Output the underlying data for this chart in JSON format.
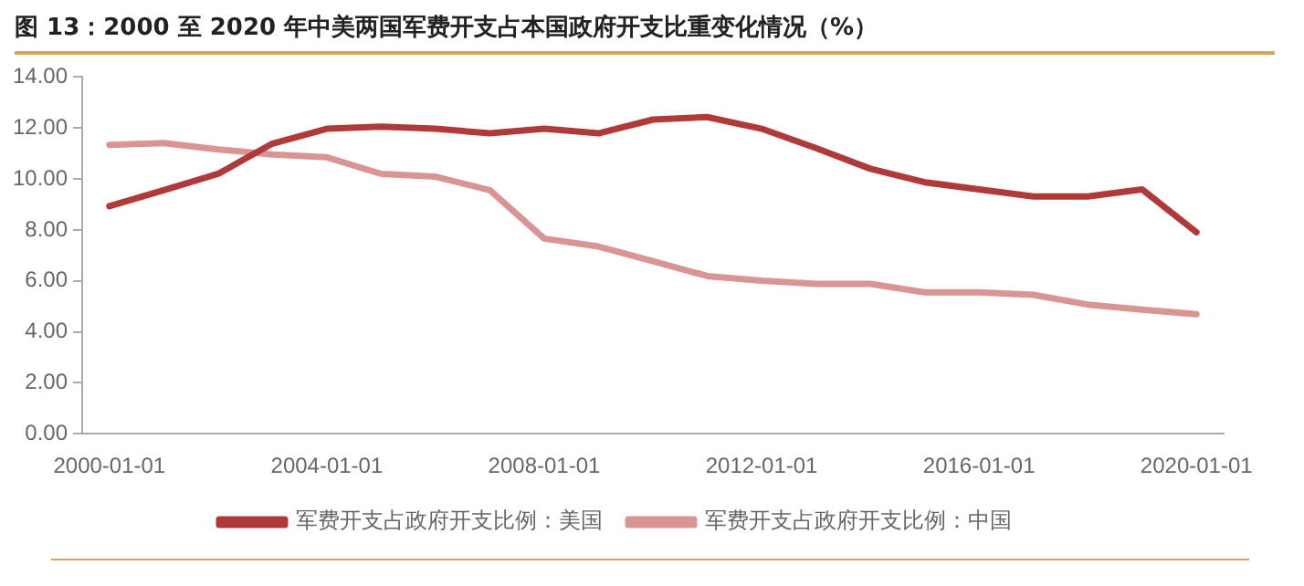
{
  "chart_data": {
    "type": "line",
    "title": "图 13：2000 至 2020 年中美两国军费开支占本国政府开支比重变化情况（%）",
    "categories": [
      "2000-01-01",
      null,
      null,
      null,
      "2004-01-01",
      null,
      null,
      null,
      "2008-01-01",
      null,
      null,
      null,
      "2012-01-01",
      null,
      null,
      null,
      "2016-01-01",
      null,
      null,
      null,
      "2020-01-01"
    ],
    "series": [
      {
        "name": "军费开支占政府开支比例：美国",
        "color": "#b03a3a",
        "values": [
          8.93,
          9.56,
          10.2,
          11.39,
          11.97,
          12.05,
          11.97,
          11.79,
          11.97,
          11.79,
          12.33,
          12.43,
          11.97,
          11.21,
          10.4,
          9.87,
          9.59,
          9.31,
          9.31,
          9.59,
          7.91
        ]
      },
      {
        "name": "军费开支占政府开支比例：中国",
        "color": "#d99594",
        "values": [
          11.34,
          11.41,
          11.16,
          10.96,
          10.85,
          10.2,
          10.09,
          9.56,
          7.66,
          7.35,
          6.77,
          6.19,
          6.01,
          5.88,
          5.88,
          5.55,
          5.55,
          5.45,
          5.07,
          4.87,
          4.69
        ]
      }
    ],
    "ylim": [
      0,
      14
    ],
    "yticks": [
      {
        "value": 0,
        "label": "0.00"
      },
      {
        "value": 2,
        "label": "2.00"
      },
      {
        "value": 4,
        "label": "4.00"
      },
      {
        "value": 6,
        "label": "6.00"
      },
      {
        "value": 8,
        "label": "8.00"
      },
      {
        "value": 10,
        "label": "10.00"
      },
      {
        "value": 12,
        "label": "12.00"
      },
      {
        "value": 14,
        "label": "14.00"
      }
    ],
    "grid": false,
    "legend": "bottom",
    "marker": "none",
    "line_style": "solid"
  }
}
